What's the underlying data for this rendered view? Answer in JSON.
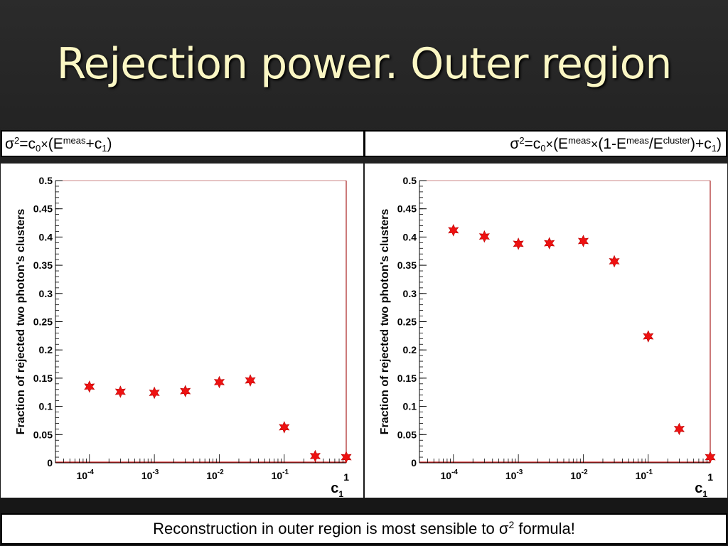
{
  "slide": {
    "title": "Rejection power. Outer region",
    "formula_left": {
      "sigma": "σ",
      "sq": "2",
      "eq_c": "=c",
      "c0sub": "0",
      "times": "×",
      "open_E": "(E",
      "meas_sup": "meas",
      "plus_c": "+c",
      "c1sub": "1",
      "close": ")"
    },
    "formula_right": {
      "sigma": "σ",
      "sq": "2",
      "eq_c": "=c",
      "c0sub": "0",
      "times": "×",
      "open_E": "(E",
      "meas_sup": "meas",
      "times2": "×",
      "one_minus_E": "(1-E",
      "meas_sup2": "meas",
      "slash_E": "/E",
      "cluster_sup": "cluster",
      "close_plus_c": ")+c",
      "c1sub": "1",
      "close": ")"
    },
    "footer": {
      "text": "Reconstruction in outer region is most sensible to σ",
      "sup": "2",
      "tail": " formula!"
    }
  },
  "colors": {
    "title": "#fbf7c4",
    "marker": "#ee1111",
    "axis": "#000000",
    "frame_right": "#aa2222"
  },
  "chart_data": [
    {
      "type": "scatter",
      "title": "",
      "xlabel": "c",
      "xlabel_sub": "1",
      "ylabel": "Fraction of rejected two photon's clusters",
      "xscale": "log",
      "xlim": [
        3e-05,
        0.9
      ],
      "ylim": [
        0,
        0.5
      ],
      "xticks": [
        {
          "value": 0.0001,
          "base": "10",
          "exp": "-4"
        },
        {
          "value": 0.001,
          "base": "10",
          "exp": "-3"
        },
        {
          "value": 0.01,
          "base": "10",
          "exp": "-2"
        },
        {
          "value": 0.1,
          "base": "10",
          "exp": "-1"
        },
        {
          "value": 0.9,
          "base": "",
          "exp": "1"
        }
      ],
      "yticks": [
        "0",
        "0.05",
        "0.1",
        "0.15",
        "0.2",
        "0.25",
        "0.3",
        "0.35",
        "0.4",
        "0.45",
        "0.5"
      ],
      "x": [
        0.0001,
        0.0003,
        0.001,
        0.003,
        0.01,
        0.03,
        0.1,
        0.3,
        0.9
      ],
      "y": [
        0.135,
        0.126,
        0.124,
        0.127,
        0.143,
        0.146,
        0.063,
        0.012,
        0.01
      ],
      "marker": "star",
      "grid": false
    },
    {
      "type": "scatter",
      "title": "",
      "xlabel": "c",
      "xlabel_sub": "1",
      "ylabel": "Fraction of rejected two photon's clusters",
      "xscale": "log",
      "xlim": [
        3e-05,
        0.9
      ],
      "ylim": [
        0,
        0.5
      ],
      "xticks": [
        {
          "value": 0.0001,
          "base": "10",
          "exp": "-4"
        },
        {
          "value": 0.001,
          "base": "10",
          "exp": "-3"
        },
        {
          "value": 0.01,
          "base": "10",
          "exp": "-2"
        },
        {
          "value": 0.1,
          "base": "10",
          "exp": "-1"
        },
        {
          "value": 0.9,
          "base": "",
          "exp": "1"
        }
      ],
      "yticks": [
        "0",
        "0.05",
        "0.1",
        "0.15",
        "0.2",
        "0.25",
        "0.3",
        "0.35",
        "0.4",
        "0.45",
        "0.5"
      ],
      "x": [
        0.0001,
        0.0003,
        0.001,
        0.003,
        0.01,
        0.03,
        0.1,
        0.3,
        0.9
      ],
      "y": [
        0.412,
        0.401,
        0.388,
        0.389,
        0.393,
        0.357,
        0.224,
        0.06,
        0.01
      ],
      "marker": "star",
      "grid": false
    }
  ]
}
